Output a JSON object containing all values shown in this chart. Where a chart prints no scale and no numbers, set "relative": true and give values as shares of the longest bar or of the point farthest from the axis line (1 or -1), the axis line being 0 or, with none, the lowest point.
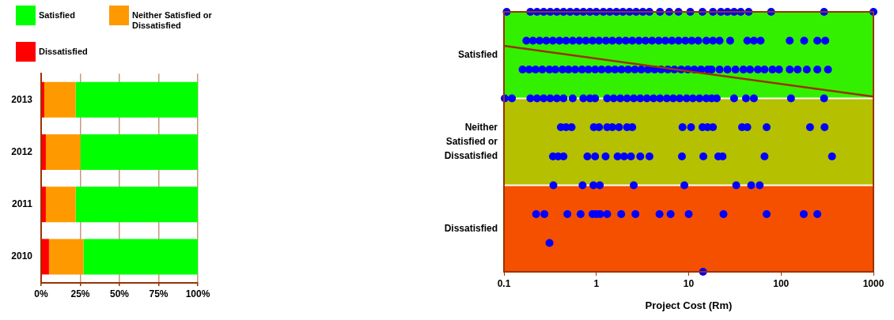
{
  "chart_data": [
    {
      "type": "bar",
      "orientation": "horizontal",
      "stacked": true,
      "categories": [
        "2013",
        "2012",
        "2011",
        "2010"
      ],
      "series": [
        {
          "name": "Dissatisfied",
          "color": "#ff0000",
          "values": [
            2,
            3,
            3,
            5
          ]
        },
        {
          "name": "Neither Satisfied or Dissatisfied",
          "color": "#ff9900",
          "values": [
            20,
            22,
            19,
            22
          ]
        },
        {
          "name": "Satisfied",
          "color": "#00ff00",
          "values": [
            78,
            75,
            78,
            73
          ]
        }
      ],
      "xlim": [
        0,
        100
      ],
      "xticks": [
        {
          "value": 0,
          "label": "0%"
        },
        {
          "value": 25,
          "label": "25%"
        },
        {
          "value": 50,
          "label": "50%"
        },
        {
          "value": 75,
          "label": "75%"
        },
        {
          "value": 100,
          "label": "100%"
        }
      ],
      "grid": "x",
      "legend": "top"
    },
    {
      "type": "scatter",
      "xlabel": "Project Cost (Rm)",
      "log": "x",
      "marker": "circle",
      "relative": true,
      "xlim": [
        0.1,
        1000
      ],
      "xticks": [
        0.1,
        1,
        10,
        100,
        1000
      ],
      "bands": [
        {
          "axis": "y",
          "from": 0.667,
          "to": 1,
          "label": "Satisfied",
          "color": "#33f000"
        },
        {
          "axis": "y",
          "from": 0.333,
          "to": 0.667,
          "label": "Neither Satisfied or Dissatisfied",
          "color": "#b4c000"
        },
        {
          "axis": "y",
          "from": 0,
          "to": 0.333,
          "label": "Dissatisfied",
          "color": "#f45000"
        }
      ],
      "ref_lines": [
        {
          "axis": "y",
          "value": 0.667,
          "color": "#ffffff"
        },
        {
          "axis": "y",
          "value": 0.333,
          "color": "#ffffff"
        }
      ],
      "series": [
        {
          "color": "#0000ff",
          "x": [
            0.107,
            0.193,
            0.228,
            0.269,
            0.317,
            0.374,
            0.441,
            0.52,
            0.613,
            0.723,
            0.853,
            1.0,
            1.19,
            1.4,
            1.65,
            1.94,
            2.29,
            2.7,
            3.19,
            3.76,
            4.89,
            6.16,
            7.76,
            10.4,
            14.1,
            18.3,
            22.3,
            26.3,
            31,
            36.6,
            44.6,
            78,
            292,
            1000
          ],
          "values": [
            1,
            1,
            1,
            1,
            1,
            1,
            1,
            1,
            1,
            1,
            1,
            1,
            1,
            1,
            1,
            1,
            1,
            1,
            1,
            1,
            1,
            1,
            1,
            1,
            1,
            1,
            1,
            1,
            1,
            1,
            1,
            1,
            1,
            1
          ]
        },
        {
          "color": "#0000ff",
          "x": [
            0.175,
            0.206,
            0.243,
            0.287,
            0.338,
            0.399,
            0.47,
            0.555,
            0.654,
            0.77,
            0.91,
            1.07,
            1.27,
            1.49,
            1.76,
            2.08,
            2.45,
            2.89,
            3.41,
            4.02,
            4.74,
            5.59,
            6.59,
            7.76,
            9.2,
            10.8,
            12.7,
            15.5,
            18.3,
            21.6,
            28.1,
            43.1,
            50.8,
            60,
            124,
            178,
            247,
            301
          ],
          "values": [
            0.889,
            0.889,
            0.889,
            0.889,
            0.889,
            0.889,
            0.889,
            0.889,
            0.889,
            0.889,
            0.889,
            0.889,
            0.889,
            0.889,
            0.889,
            0.889,
            0.889,
            0.889,
            0.889,
            0.889,
            0.889,
            0.889,
            0.889,
            0.889,
            0.889,
            0.889,
            0.889,
            0.889,
            0.889,
            0.889,
            0.889,
            0.889,
            0.889,
            0.889,
            0.889,
            0.889,
            0.889,
            0.889
          ]
        },
        {
          "color": "#0000ff",
          "x": [
            0.159,
            0.187,
            0.22,
            0.26,
            0.31,
            0.36,
            0.43,
            0.5,
            0.59,
            0.7,
            0.82,
            0.97,
            1.14,
            1.35,
            1.59,
            1.87,
            2.21,
            2.61,
            3.07,
            3.63,
            4.28,
            5.04,
            5.95,
            7,
            8.3,
            9.8,
            11.5,
            13.6,
            16.1,
            17.7,
            21.6,
            26.3,
            32.1,
            39.1,
            46.1,
            56.1,
            66.2,
            80.7,
            95,
            124,
            151,
            190,
            247,
            322
          ],
          "values": [
            0.778,
            0.778,
            0.778,
            0.778,
            0.778,
            0.778,
            0.778,
            0.778,
            0.778,
            0.778,
            0.778,
            0.778,
            0.778,
            0.778,
            0.778,
            0.778,
            0.778,
            0.778,
            0.778,
            0.778,
            0.778,
            0.778,
            0.778,
            0.778,
            0.778,
            0.778,
            0.778,
            0.778,
            0.778,
            0.778,
            0.778,
            0.778,
            0.778,
            0.778,
            0.778,
            0.778,
            0.778,
            0.778,
            0.778,
            0.778,
            0.778,
            0.778,
            0.778,
            0.778
          ]
        },
        {
          "color": "#0000ff",
          "x": [
            0.102,
            0.122,
            0.193,
            0.228,
            0.269,
            0.317,
            0.374,
            0.441,
            0.555,
            0.723,
            0.853,
            0.97,
            1.31,
            1.54,
            1.82,
            2.15,
            2.54,
            2.99,
            3.53,
            4.16,
            4.89,
            5.8,
            6.8,
            8,
            9.5,
            11.1,
            13.1,
            15.5,
            17.7,
            20.1,
            31,
            41.7,
            50.8,
            128,
            292
          ],
          "values": [
            0.667,
            0.667,
            0.667,
            0.667,
            0.667,
            0.667,
            0.667,
            0.667,
            0.667,
            0.667,
            0.667,
            0.667,
            0.667,
            0.667,
            0.667,
            0.667,
            0.667,
            0.667,
            0.667,
            0.667,
            0.667,
            0.667,
            0.667,
            0.667,
            0.667,
            0.667,
            0.667,
            0.667,
            0.667,
            0.667,
            0.667,
            0.667,
            0.667,
            0.667,
            0.667
          ]
        },
        {
          "color": "#0000ff",
          "x": [
            0.413,
            0.47,
            0.54,
            0.94,
            1.07,
            1.31,
            1.49,
            1.76,
            2.15,
            2.45,
            8.57,
            10.6,
            14.1,
            16,
            18.3,
            37.8,
            43.1,
            69.8,
            206,
            296
          ],
          "values": [
            0.556,
            0.556,
            0.556,
            0.556,
            0.556,
            0.556,
            0.556,
            0.556,
            0.556,
            0.556,
            0.556,
            0.556,
            0.556,
            0.556,
            0.556,
            0.556,
            0.556,
            0.556,
            0.556,
            0.556
          ]
        },
        {
          "color": "#0000ff",
          "x": [
            0.339,
            0.386,
            0.441,
            0.8,
            0.97,
            1.26,
            1.7,
            2,
            2.37,
            2.99,
            3.76,
            8.45,
            14.4,
            20.9,
            23.3,
            66.2,
            356
          ],
          "values": [
            0.444,
            0.444,
            0.444,
            0.444,
            0.444,
            0.444,
            0.444,
            0.444,
            0.444,
            0.444,
            0.444,
            0.444,
            0.444,
            0.444,
            0.444,
            0.444,
            0.444
          ]
        },
        {
          "color": "#0000ff",
          "x": [
            0.343,
            0.71,
            0.93,
            1.09,
            2.54,
            8.98,
            32.7,
            47.5,
            58.7
          ],
          "values": [
            0.333,
            0.333,
            0.333,
            0.333,
            0.333,
            0.333,
            0.333,
            0.333,
            0.333
          ]
        },
        {
          "color": "#0000ff",
          "x": [
            0.223,
            0.274,
            0.486,
            0.676,
            0.91,
            1,
            1.1,
            1.31,
            1.86,
            2.65,
            4.83,
            6.37,
            10,
            23.8,
            69.8,
            176,
            247
          ],
          "values": [
            0.222,
            0.222,
            0.222,
            0.222,
            0.222,
            0.222,
            0.222,
            0.222,
            0.222,
            0.222,
            0.222,
            0.222,
            0.222,
            0.222,
            0.222,
            0.222,
            0.222
          ]
        },
        {
          "color": "#0000ff",
          "x": [
            0.311
          ],
          "values": [
            0.111
          ]
        },
        {
          "color": "#0000ff",
          "x": [
            14.3
          ],
          "values": [
            0
          ]
        },
        {
          "type": "line",
          "marker": "none",
          "color": "#993300",
          "x": [
            0.1,
            1000
          ],
          "values": [
            0.869,
            0.674
          ]
        }
      ]
    }
  ]
}
